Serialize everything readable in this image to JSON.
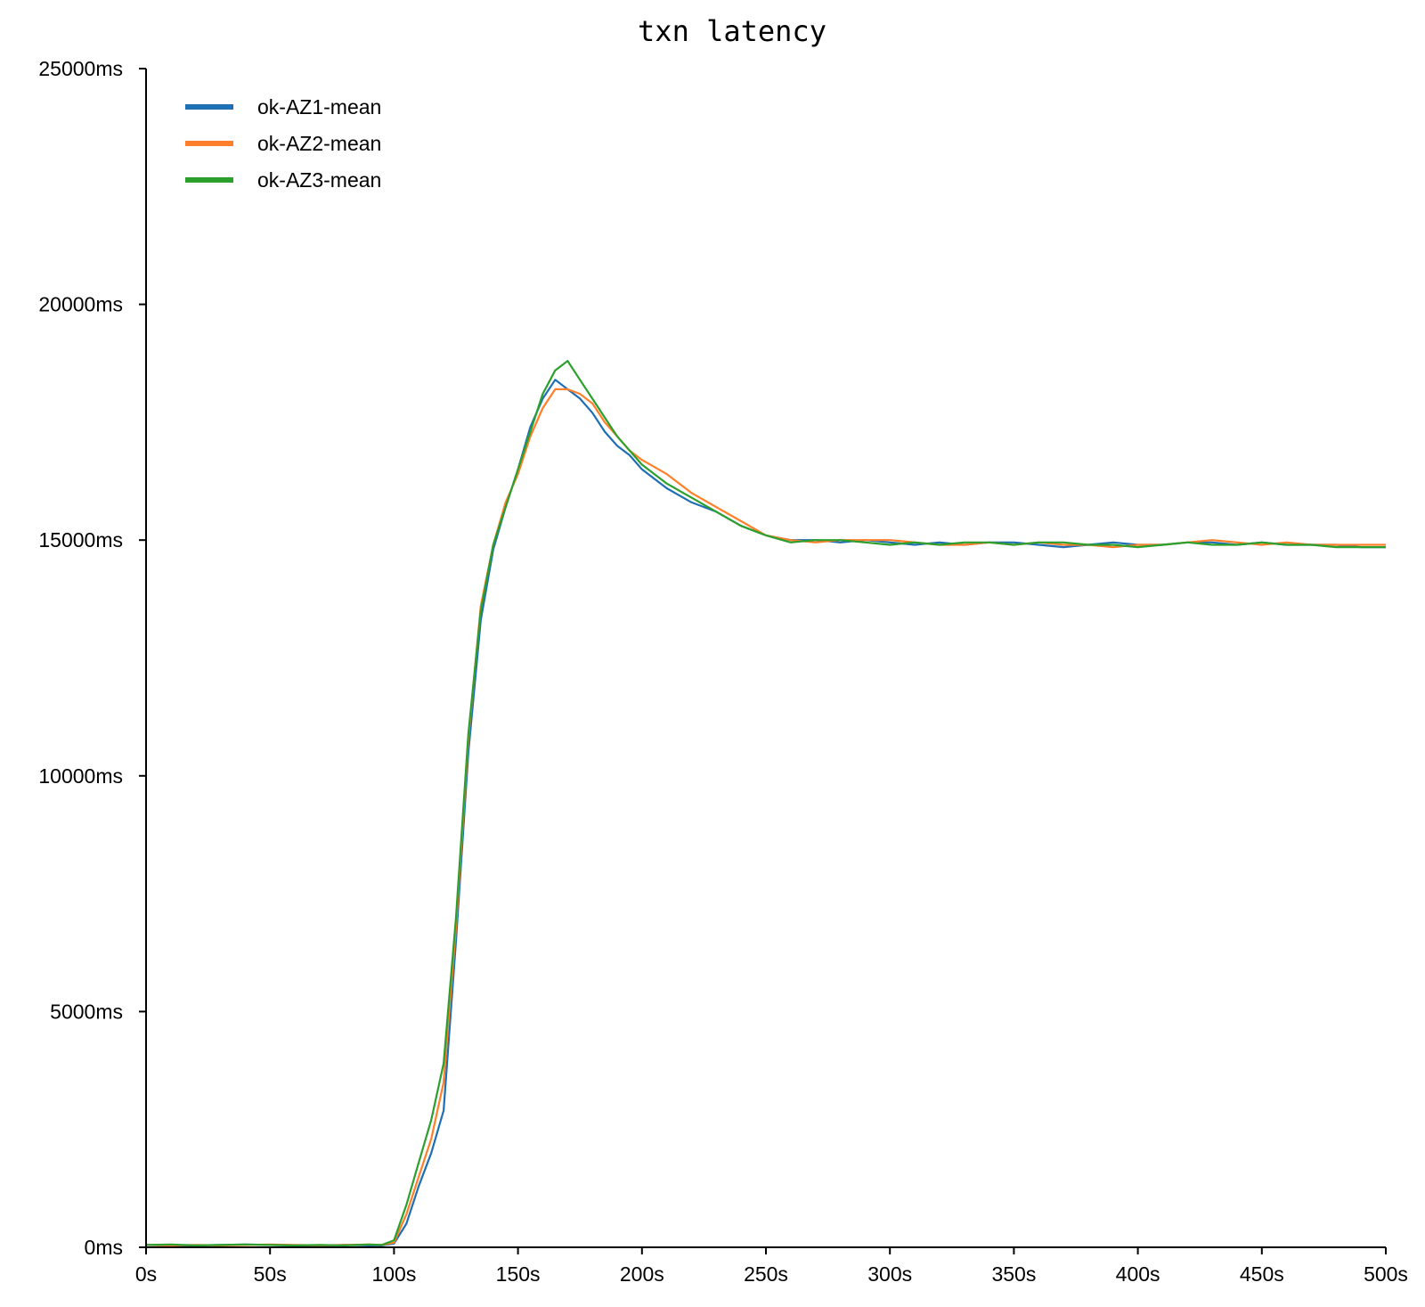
{
  "chart_data": {
    "type": "line",
    "title": "txn latency",
    "xlabel": "",
    "ylabel": "",
    "xlim": [
      0,
      500
    ],
    "ylim": [
      0,
      25000
    ],
    "grid": false,
    "legend_position": "top-left",
    "x_ticks": [
      0,
      50,
      100,
      150,
      200,
      250,
      300,
      350,
      400,
      450,
      500
    ],
    "x_tick_labels": [
      "0s",
      "50s",
      "100s",
      "150s",
      "200s",
      "250s",
      "300s",
      "350s",
      "400s",
      "450s",
      "500s"
    ],
    "y_ticks": [
      0,
      5000,
      10000,
      15000,
      20000,
      25000
    ],
    "y_tick_labels": [
      "0ms",
      "5000ms",
      "10000ms",
      "15000ms",
      "20000ms",
      "25000ms"
    ],
    "series": [
      {
        "name": "ok-AZ1-mean",
        "color": "#1f6fb4",
        "x": [
          0,
          10,
          20,
          30,
          40,
          50,
          60,
          70,
          80,
          90,
          95,
          100,
          105,
          110,
          115,
          120,
          125,
          130,
          135,
          140,
          145,
          150,
          155,
          160,
          165,
          170,
          175,
          180,
          185,
          190,
          195,
          200,
          210,
          220,
          230,
          240,
          250,
          260,
          270,
          280,
          290,
          300,
          310,
          320,
          330,
          340,
          350,
          360,
          370,
          380,
          390,
          400,
          410,
          420,
          430,
          440,
          450,
          460,
          470,
          480,
          490,
          500
        ],
        "y": [
          50,
          40,
          40,
          50,
          60,
          50,
          40,
          40,
          50,
          40,
          40,
          80,
          500,
          1300,
          2000,
          2900,
          6500,
          10500,
          13300,
          14800,
          15700,
          16500,
          17400,
          18000,
          18400,
          18200,
          18000,
          17700,
          17300,
          17000,
          16800,
          16500,
          16100,
          15800,
          15600,
          15300,
          15100,
          15000,
          15000,
          14950,
          15000,
          14950,
          14900,
          14950,
          14900,
          14950,
          14950,
          14900,
          14850,
          14900,
          14950,
          14900,
          14900,
          14950,
          14950,
          14900,
          14950,
          14900,
          14900,
          14900,
          14850,
          14850
        ]
      },
      {
        "name": "ok-AZ2-mean",
        "color": "#ff7f2a",
        "x": [
          0,
          10,
          20,
          30,
          40,
          50,
          60,
          70,
          80,
          90,
          95,
          100,
          105,
          110,
          115,
          120,
          125,
          130,
          135,
          140,
          145,
          150,
          155,
          160,
          165,
          170,
          175,
          180,
          185,
          190,
          195,
          200,
          210,
          220,
          230,
          240,
          250,
          260,
          270,
          280,
          290,
          300,
          310,
          320,
          330,
          340,
          350,
          360,
          370,
          380,
          390,
          400,
          410,
          420,
          430,
          440,
          450,
          460,
          470,
          480,
          490,
          500
        ],
        "y": [
          50,
          40,
          50,
          40,
          50,
          60,
          50,
          40,
          50,
          60,
          50,
          100,
          700,
          1500,
          2300,
          3500,
          6800,
          10800,
          13600,
          14900,
          15800,
          16400,
          17200,
          17800,
          18200,
          18200,
          18100,
          17900,
          17500,
          17200,
          16900,
          16700,
          16400,
          16000,
          15700,
          15400,
          15100,
          15000,
          14950,
          15000,
          15000,
          15000,
          14950,
          14900,
          14900,
          14950,
          14900,
          14950,
          14900,
          14900,
          14850,
          14900,
          14900,
          14950,
          15000,
          14950,
          14900,
          14950,
          14900,
          14900,
          14900,
          14900
        ]
      },
      {
        "name": "ok-AZ3-mean",
        "color": "#2ca02c",
        "x": [
          0,
          10,
          20,
          30,
          40,
          50,
          60,
          70,
          80,
          90,
          95,
          100,
          105,
          110,
          115,
          120,
          125,
          130,
          135,
          140,
          145,
          150,
          155,
          160,
          165,
          170,
          175,
          180,
          185,
          190,
          195,
          200,
          210,
          220,
          230,
          240,
          250,
          260,
          270,
          280,
          290,
          300,
          310,
          320,
          330,
          340,
          350,
          360,
          370,
          380,
          390,
          400,
          410,
          420,
          430,
          440,
          450,
          460,
          470,
          480,
          490,
          500
        ],
        "y": [
          50,
          60,
          40,
          50,
          60,
          50,
          40,
          50,
          40,
          60,
          50,
          150,
          900,
          1800,
          2700,
          3900,
          7000,
          10900,
          13500,
          14900,
          15700,
          16500,
          17300,
          18100,
          18600,
          18800,
          18400,
          18000,
          17600,
          17200,
          16900,
          16600,
          16200,
          15900,
          15600,
          15300,
          15100,
          14950,
          15000,
          15000,
          14950,
          14900,
          14950,
          14900,
          14950,
          14950,
          14900,
          14950,
          14950,
          14900,
          14900,
          14850,
          14900,
          14950,
          14900,
          14900,
          14950,
          14900,
          14900,
          14850,
          14850,
          14850
        ]
      }
    ]
  }
}
